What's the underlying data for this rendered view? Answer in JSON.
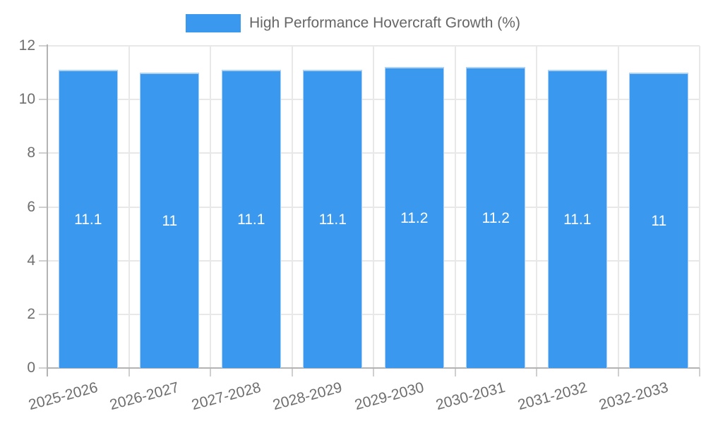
{
  "legend": {
    "label": "High Performance Hovercraft Growth (%)",
    "swatch_color": "#3A99EF"
  },
  "chart_data": {
    "type": "bar",
    "title": "High Performance Hovercraft Growth (%)",
    "categories": [
      "2025-2026",
      "2026-2027",
      "2027-2028",
      "2028-2029",
      "2029-2030",
      "2030-2031",
      "2031-2032",
      "2032-2033"
    ],
    "values": [
      11.1,
      11,
      11.1,
      11.1,
      11.2,
      11.2,
      11.1,
      11
    ],
    "value_labels": [
      "11.1",
      "11",
      "11.1",
      "11.1",
      "11.2",
      "11.2",
      "11.1",
      "11"
    ],
    "xlabel": "",
    "ylabel": "",
    "ylim": [
      0,
      12
    ],
    "yticks": [
      0,
      2,
      4,
      6,
      8,
      10,
      12
    ],
    "grid": true,
    "legend_position": "top",
    "bar_color": "#3A99EF",
    "bar_border_color": "#AFD3F6",
    "value_label_color": "#FFFFFF",
    "grid_color": "#E8E8E8",
    "tick_mark_color": "#CFCFCF",
    "axis_line_color": "#B3B3B3",
    "axis_text_color": "#6E6E6E"
  }
}
